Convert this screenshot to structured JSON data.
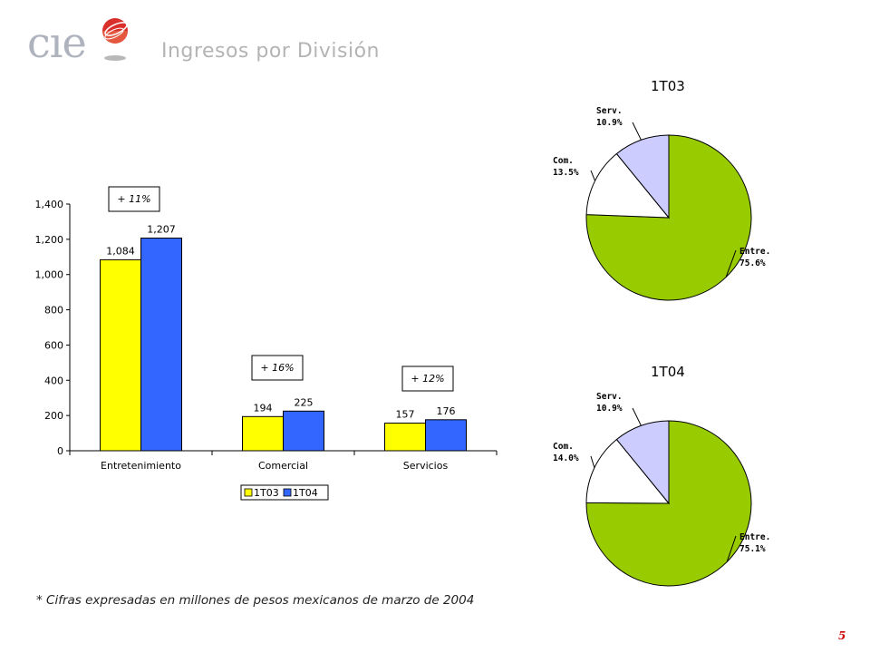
{
  "logo": {
    "text": "cıe"
  },
  "title": "Ingresos por División",
  "page_number": "5",
  "footnote": "* Cifras expresadas en millones de pesos mexicanos de marzo de 2004",
  "colors": {
    "1T03": "#ffff00",
    "1T04": "#3366ff",
    "entre": "#99cc00",
    "com": "#ffffff",
    "serv": "#ccccff",
    "page_number": "#cc0000"
  },
  "chart_data": [
    {
      "type": "bar",
      "categories": [
        "Entretenimiento",
        "Comercial",
        "Servicios"
      ],
      "series": [
        {
          "name": "1T03",
          "values": [
            1084,
            194,
            157
          ],
          "labels": [
            "1,084",
            "194",
            "157"
          ]
        },
        {
          "name": "1T04",
          "values": [
            1207,
            225,
            176
          ],
          "labels": [
            "1,207",
            "225",
            "176"
          ]
        }
      ],
      "ylim": [
        0,
        1400
      ],
      "yticks": [
        0,
        200,
        400,
        600,
        800,
        1000,
        1200,
        1400
      ],
      "ytick_labels": [
        "0",
        "200",
        "400",
        "600",
        "800",
        "1,000",
        "1,200",
        "1,400"
      ],
      "growth_labels": [
        "+ 11%",
        "+ 16%",
        "+ 12%"
      ],
      "legend": {
        "position": "bottom",
        "entries": [
          "1T03",
          "1T04"
        ]
      }
    },
    {
      "type": "pie",
      "title": "1T03",
      "slices": [
        {
          "label": "Entre.",
          "value": 75.6,
          "value_label": "75.6%"
        },
        {
          "label": "Com.",
          "value": 13.5,
          "value_label": "13.5%"
        },
        {
          "label": "Serv.",
          "value": 10.9,
          "value_label": "10.9%"
        }
      ]
    },
    {
      "type": "pie",
      "title": "1T04",
      "slices": [
        {
          "label": "Entre.",
          "value": 75.1,
          "value_label": "75.1%"
        },
        {
          "label": "Com.",
          "value": 14.0,
          "value_label": "14.0%"
        },
        {
          "label": "Serv.",
          "value": 10.9,
          "value_label": "10.9%"
        }
      ]
    }
  ]
}
